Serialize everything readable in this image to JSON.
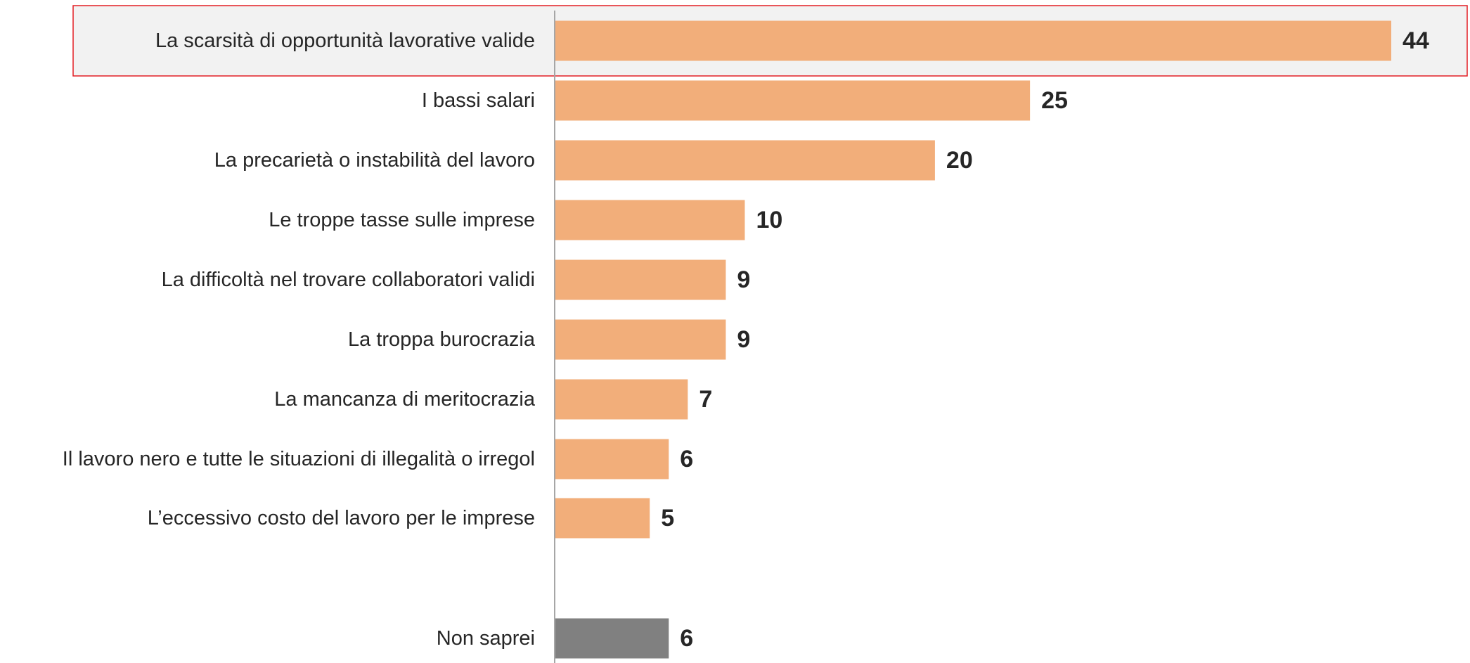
{
  "chart_data": {
    "type": "bar",
    "orientation": "horizontal",
    "title": "",
    "xlabel": "",
    "ylabel": "",
    "xlim": [
      0,
      44
    ],
    "grid": false,
    "legend": "none",
    "highlighted_category": "La scarsità di opportunità lavorative valide",
    "categories": [
      "La scarsità di opportunità lavorative valide",
      "I bassi salari",
      "La precarietà o instabilità del lavoro",
      "Le troppe tasse sulle imprese",
      "La difficoltà nel trovare collaboratori validi",
      "La troppa burocrazia",
      "La mancanza di meritocrazia",
      "Il lavoro nero e tutte le situazioni di illegalità o irregol",
      "L’eccessivo costo del lavoro per le imprese",
      "Non saprei"
    ],
    "values": [
      44,
      25,
      20,
      10,
      9,
      9,
      7,
      6,
      5,
      6
    ],
    "value_labels": [
      "44",
      "25",
      "20",
      "10",
      "9",
      "9",
      "7",
      "6",
      "5",
      "6"
    ],
    "colors": {
      "bar": "#F2AE7A",
      "bar_no_answer": "#808080",
      "highlight_fill": "#F2F2F2",
      "highlight_border": "#E31E24",
      "axis": "#A6A6A6",
      "text": "#262626"
    }
  }
}
